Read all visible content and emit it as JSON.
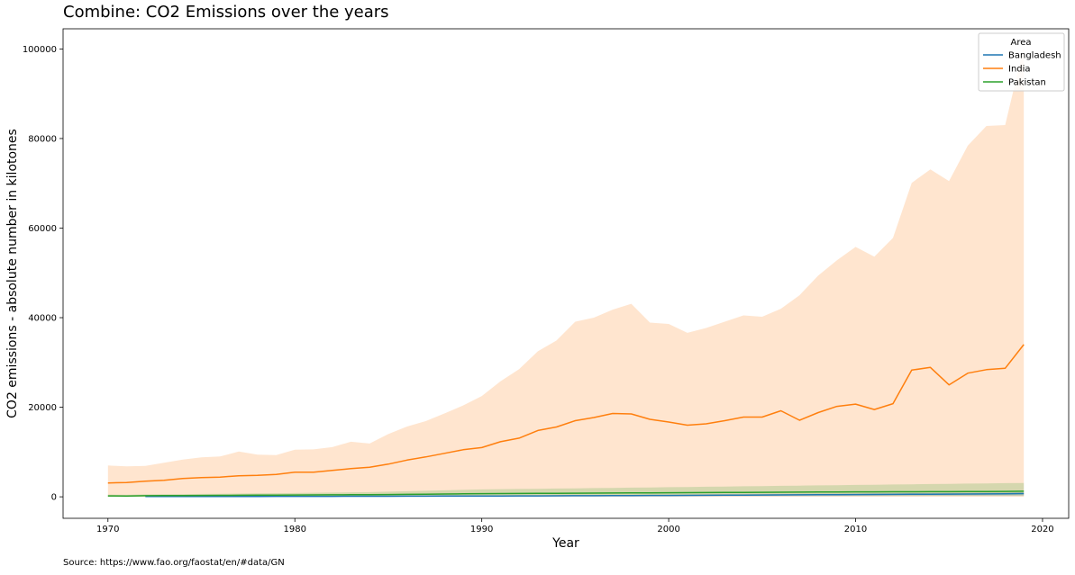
{
  "chart_data": {
    "type": "line",
    "title": "Combine: CO2 Emissions over the years",
    "xlabel": "Year",
    "ylabel": "CO2 emissions - absolute number in kilotones",
    "xlim": [
      1967.6,
      2021.4
    ],
    "ylim": [
      -4800,
      104500
    ],
    "x_ticks": [
      1970,
      1980,
      1990,
      2000,
      2010,
      2020
    ],
    "y_ticks": [
      0,
      20000,
      40000,
      60000,
      80000,
      100000
    ],
    "legend": {
      "title": "Area",
      "position": "top-right"
    },
    "grid": false,
    "series": [
      {
        "name": "Bangladesh",
        "color": "#1f77b4",
        "x": [
          1972,
          1973,
          1974,
          1975,
          1976,
          1977,
          1978,
          1979,
          1980,
          1981,
          1982,
          1983,
          1984,
          1985,
          1986,
          1987,
          1988,
          1989,
          1990,
          1991,
          1992,
          1993,
          1994,
          1995,
          1996,
          1997,
          1998,
          1999,
          2000,
          2001,
          2002,
          2003,
          2004,
          2005,
          2006,
          2007,
          2008,
          2009,
          2010,
          2011,
          2012,
          2013,
          2014,
          2015,
          2016,
          2017,
          2018,
          2019
        ],
        "values": [
          60,
          65,
          70,
          75,
          80,
          85,
          90,
          95,
          100,
          105,
          110,
          115,
          120,
          130,
          140,
          150,
          160,
          170,
          180,
          190,
          200,
          210,
          220,
          235,
          250,
          265,
          280,
          295,
          310,
          325,
          340,
          360,
          380,
          400,
          420,
          440,
          460,
          480,
          500,
          520,
          540,
          560,
          580,
          600,
          620,
          650,
          680,
          720
        ],
        "band_low": [
          20,
          22,
          24,
          26,
          28,
          30,
          32,
          34,
          36,
          38,
          40,
          42,
          44,
          47,
          50,
          53,
          56,
          59,
          62,
          65,
          68,
          71,
          74,
          78,
          82,
          86,
          90,
          94,
          98,
          102,
          106,
          110,
          114,
          118,
          122,
          126,
          130,
          134,
          138,
          142,
          146,
          150,
          154,
          158,
          162,
          166,
          170,
          175
        ],
        "band_high": [
          120,
          125,
          130,
          135,
          140,
          145,
          150,
          155,
          160,
          165,
          170,
          175,
          180,
          195,
          210,
          225,
          240,
          255,
          270,
          285,
          300,
          315,
          330,
          350,
          370,
          390,
          410,
          430,
          450,
          470,
          490,
          520,
          550,
          580,
          610,
          640,
          670,
          700,
          730,
          760,
          790,
          820,
          850,
          880,
          910,
          950,
          990,
          1050
        ]
      },
      {
        "name": "India",
        "color": "#ff7f0e",
        "x": [
          1970,
          1971,
          1972,
          1973,
          1974,
          1975,
          1976,
          1977,
          1978,
          1979,
          1980,
          1981,
          1982,
          1983,
          1984,
          1985,
          1986,
          1987,
          1988,
          1989,
          1990,
          1991,
          1992,
          1993,
          1994,
          1995,
          1996,
          1997,
          1998,
          1999,
          2000,
          2001,
          2002,
          2003,
          2004,
          2005,
          2006,
          2007,
          2008,
          2009,
          2010,
          2011,
          2012,
          2013,
          2014,
          2015,
          2016,
          2017,
          2018,
          2019
        ],
        "values": [
          3100,
          3200,
          3500,
          3700,
          4100,
          4300,
          4400,
          4700,
          4800,
          5000,
          5500,
          5500,
          5900,
          6300,
          6600,
          7300,
          8200,
          8900,
          9700,
          10500,
          11000,
          12300,
          13100,
          14800,
          15600,
          17000,
          17700,
          18600,
          18500,
          17300,
          16700,
          16000,
          16300,
          17000,
          17800,
          17800,
          19200,
          17100,
          18800,
          20200,
          20700,
          19500,
          20800,
          28300,
          28900,
          25000,
          27600,
          28400,
          28700,
          34000
        ],
        "band_low": [
          0,
          0,
          0,
          0,
          0,
          0,
          0,
          0,
          0,
          0,
          0,
          0,
          0,
          0,
          0,
          0,
          0,
          0,
          0,
          0,
          0,
          0,
          0,
          0,
          0,
          0,
          0,
          0,
          0,
          0,
          0,
          0,
          0,
          0,
          0,
          0,
          0,
          0,
          0,
          0,
          0,
          0,
          0,
          0,
          0,
          0,
          0,
          0,
          0,
          0
        ],
        "band_high": [
          7000,
          6800,
          6900,
          7600,
          8300,
          8800,
          9000,
          10100,
          9400,
          9300,
          10500,
          10600,
          11100,
          12300,
          11900,
          14000,
          15700,
          16900,
          18600,
          20400,
          22500,
          25800,
          28500,
          32500,
          34900,
          39100,
          40000,
          41800,
          43100,
          38900,
          38600,
          36600,
          37700,
          39100,
          40500,
          40200,
          42000,
          45000,
          49400,
          52800,
          55800,
          53600,
          57800,
          70100,
          73100,
          70500,
          78400,
          82800,
          83000,
          100500
        ]
      },
      {
        "name": "Pakistan",
        "color": "#2ca02c",
        "x": [
          1970,
          1971,
          1972,
          1973,
          1974,
          1975,
          1976,
          1977,
          1978,
          1979,
          1980,
          1981,
          1982,
          1983,
          1984,
          1985,
          1986,
          1987,
          1988,
          1989,
          1990,
          1991,
          1992,
          1993,
          1994,
          1995,
          1996,
          1997,
          1998,
          1999,
          2000,
          2001,
          2002,
          2003,
          2004,
          2005,
          2006,
          2007,
          2008,
          2009,
          2010,
          2011,
          2012,
          2013,
          2014,
          2015,
          2016,
          2017,
          2018,
          2019
        ],
        "values": [
          200,
          180,
          250,
          260,
          280,
          300,
          320,
          340,
          360,
          380,
          400,
          420,
          440,
          460,
          480,
          510,
          540,
          580,
          620,
          660,
          700,
          720,
          740,
          760,
          780,
          800,
          820,
          840,
          860,
          880,
          900,
          920,
          940,
          960,
          980,
          1000,
          1020,
          1040,
          1060,
          1080,
          1100,
          1110,
          1120,
          1130,
          1140,
          1150,
          1160,
          1180,
          1200,
          1250
        ],
        "band_low": [
          50,
          45,
          60,
          65,
          70,
          75,
          80,
          85,
          90,
          95,
          100,
          105,
          110,
          115,
          120,
          128,
          135,
          145,
          155,
          165,
          175,
          180,
          185,
          190,
          195,
          200,
          205,
          210,
          215,
          220,
          225,
          230,
          235,
          240,
          245,
          250,
          255,
          260,
          265,
          270,
          275,
          278,
          280,
          283,
          285,
          288,
          290,
          295,
          300,
          310
        ],
        "band_high": [
          500,
          450,
          550,
          580,
          600,
          640,
          680,
          720,
          760,
          800,
          850,
          900,
          950,
          1000,
          1050,
          1150,
          1250,
          1350,
          1450,
          1550,
          1650,
          1700,
          1750,
          1800,
          1850,
          1900,
          1950,
          2000,
          2050,
          2100,
          2150,
          2200,
          2250,
          2300,
          2350,
          2400,
          2450,
          2500,
          2550,
          2600,
          2650,
          2700,
          2750,
          2800,
          2850,
          2900,
          2950,
          3000,
          3050,
          3100
        ]
      }
    ]
  },
  "footer": {
    "source": "Source: https://www.fao.org/faostat/en/#data/GN"
  }
}
